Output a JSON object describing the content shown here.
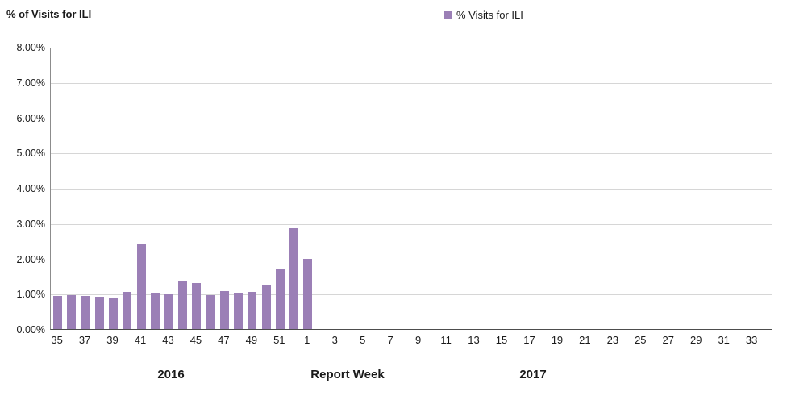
{
  "title": "% of Visits for ILI",
  "legend": {
    "label": "% Visits for ILI",
    "color": "#9b7fb6"
  },
  "footer": {
    "year_left": "2016",
    "axis_title": "Report Week",
    "year_right": "2017"
  },
  "chart_data": {
    "type": "bar",
    "title": "% of Visits for ILI",
    "xlabel": "Report Week",
    "ylabel": "% of Visits for ILI",
    "ylim": [
      0,
      8
    ],
    "grid": "horizontal",
    "legend_position": "top",
    "bar_color": "#9b7fb6",
    "yticks": [
      "0.00%",
      "1.00%",
      "2.00%",
      "3.00%",
      "4.00%",
      "5.00%",
      "6.00%",
      "7.00%",
      "8.00%"
    ],
    "x": [
      35,
      36,
      37,
      38,
      39,
      40,
      41,
      42,
      43,
      44,
      45,
      46,
      47,
      48,
      49,
      50,
      51,
      52,
      1,
      2,
      3,
      4,
      5,
      6,
      7,
      8,
      9,
      10,
      11,
      12,
      13,
      14,
      15,
      16,
      17,
      18,
      19,
      20,
      21,
      22,
      23,
      24,
      25,
      26,
      27,
      28,
      29,
      30,
      31,
      32,
      33,
      34
    ],
    "x_tick_labels_shown": [
      35,
      37,
      39,
      41,
      43,
      45,
      47,
      49,
      51,
      1,
      3,
      5,
      7,
      9,
      11,
      13,
      15,
      17,
      19,
      21,
      23,
      25,
      27,
      29,
      31,
      33
    ],
    "series": [
      {
        "name": "% Visits for ILI",
        "values": [
          0.93,
          0.95,
          0.93,
          0.92,
          0.9,
          1.05,
          2.43,
          1.02,
          1.0,
          1.37,
          1.3,
          0.95,
          1.08,
          1.02,
          1.06,
          1.25,
          1.72,
          2.85,
          2.0,
          null,
          null,
          null,
          null,
          null,
          null,
          null,
          null,
          null,
          null,
          null,
          null,
          null,
          null,
          null,
          null,
          null,
          null,
          null,
          null,
          null,
          null,
          null,
          null,
          null,
          null,
          null,
          null,
          null,
          null,
          null,
          null,
          null
        ]
      }
    ],
    "year_groups": [
      {
        "label": "2016",
        "weeks": "35-52"
      },
      {
        "label": "2017",
        "weeks": "1-34"
      }
    ]
  }
}
